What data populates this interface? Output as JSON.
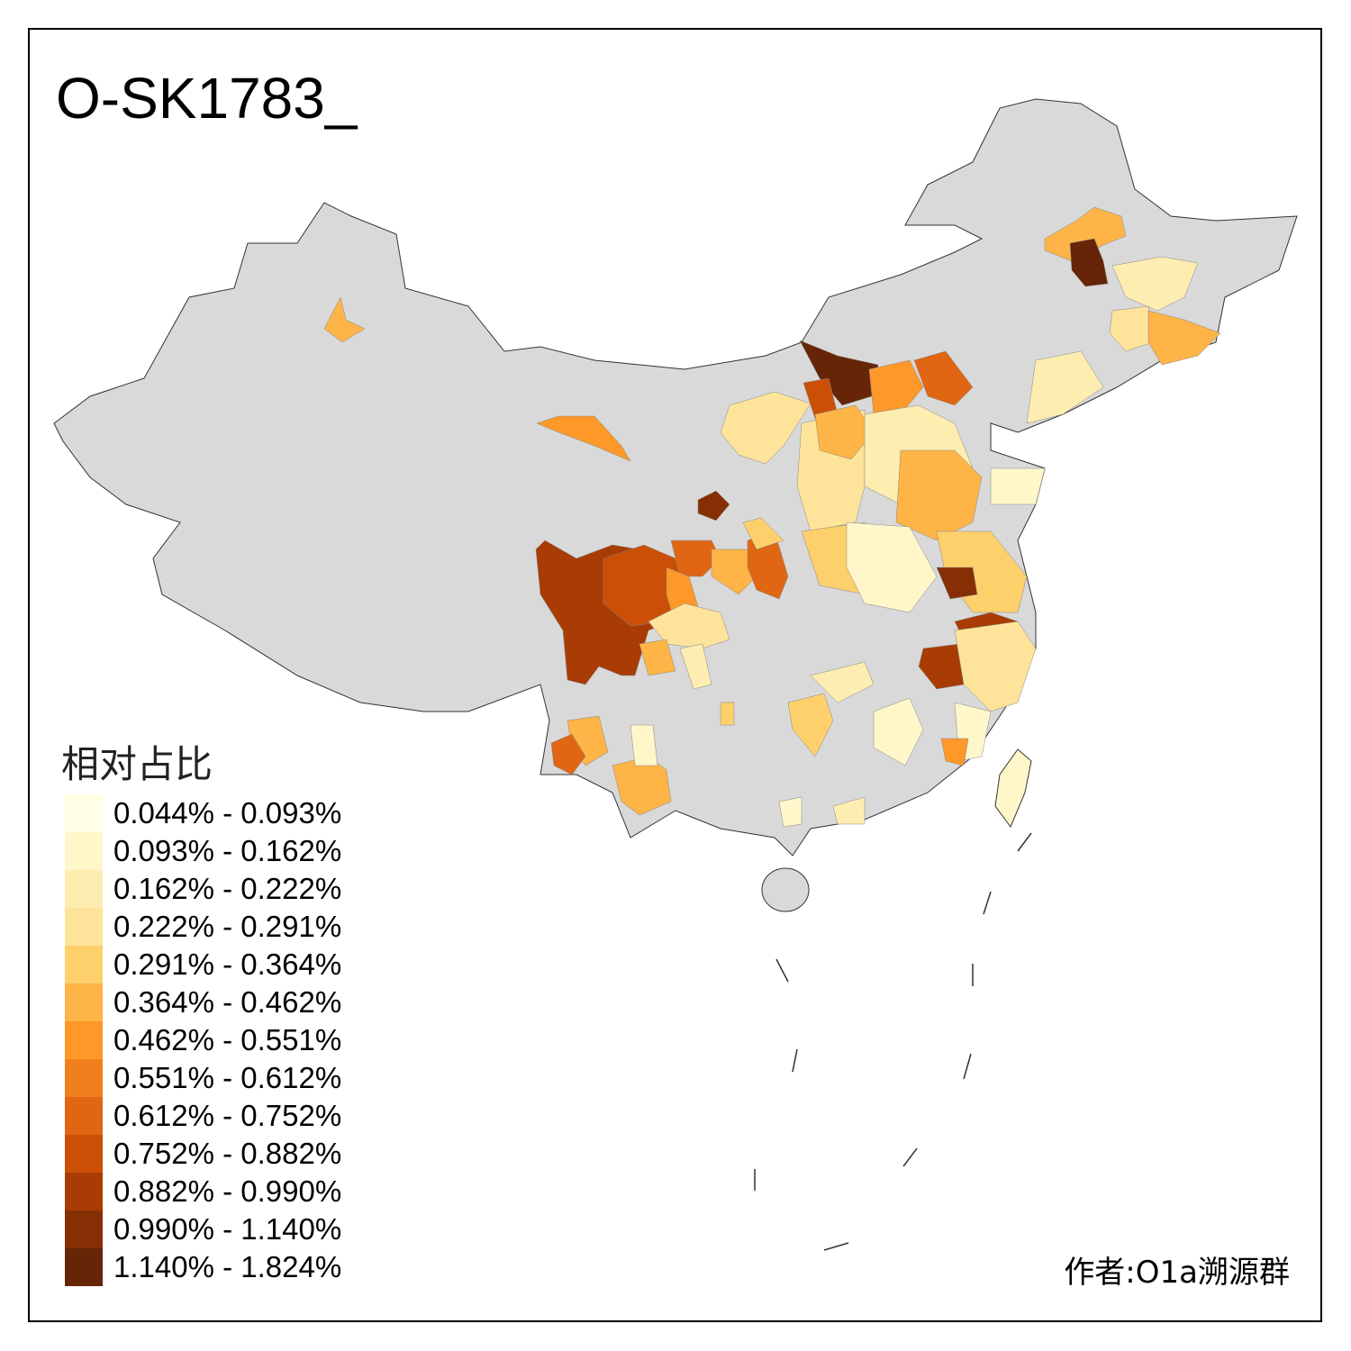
{
  "title": "O-SK1783_",
  "legend": {
    "title": "相对占比",
    "bins": [
      {
        "label": "0.044% - 0.093%",
        "color": "#FFFFE5"
      },
      {
        "label": "0.093% - 0.162%",
        "color": "#FFF7C9"
      },
      {
        "label": "0.162% - 0.222%",
        "color": "#FEEDB0"
      },
      {
        "label": "0.222% - 0.291%",
        "color": "#FEE39A"
      },
      {
        "label": "0.291% - 0.364%",
        "color": "#FED06C"
      },
      {
        "label": "0.364% - 0.462%",
        "color": "#FEB446"
      },
      {
        "label": "0.462% - 0.551%",
        "color": "#FD9829"
      },
      {
        "label": "0.551% - 0.612%",
        "color": "#F0801E"
      },
      {
        "label": "0.612% - 0.752%",
        "color": "#E06614"
      },
      {
        "label": "0.752% - 0.882%",
        "color": "#CB4F06"
      },
      {
        "label": "0.882% - 0.990%",
        "color": "#A83C04"
      },
      {
        "label": "0.990% - 1.140%",
        "color": "#862F05"
      },
      {
        "label": "1.140% - 1.824%",
        "color": "#662506"
      }
    ]
  },
  "no_data_color": "#D9D9D9",
  "author": "作者:O1a溯源群"
}
